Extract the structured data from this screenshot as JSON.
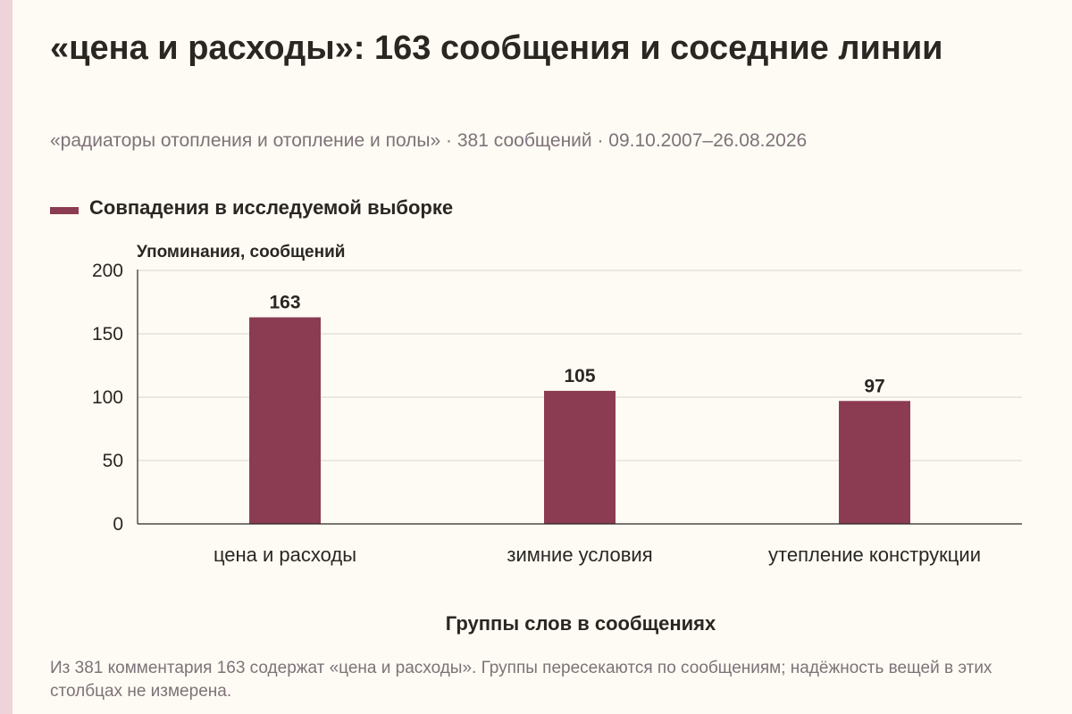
{
  "header": {
    "title": "«цена и расходы»: 163 сообщения и соседние линии",
    "subtitle": "«радиаторы отопления и отопление и полы» · 381 сообщений · 09.10.2007–26.08.2026"
  },
  "footnote": "Из 381 комментария 163 содержат «цена и расходы». Группы пересекаются по сообщениям; надёжность вещей в этих столбцах не измерена.",
  "colors": {
    "bar": "#8b3c52",
    "grid": "#d9d4cc",
    "axis": "#2a2622",
    "side_strip": "#efd3da"
  },
  "chart_data": {
    "type": "bar",
    "title": "«цена и расходы»: 163 сообщения и соседние линии",
    "subtitle": "«радиаторы отопления и отопление и полы» · 381 сообщений · 09.10.2007–26.08.2026",
    "categories": [
      "цена и расходы",
      "зимние условия",
      "утепление конструкции"
    ],
    "series": [
      {
        "name": "Совпадения в исследуемой выборке",
        "values": [
          163,
          105,
          97
        ]
      }
    ],
    "xlabel": "Группы слов в сообщениях",
    "ylabel": "Упоминания, сообщений",
    "ylim": [
      0,
      200
    ],
    "yticks": [
      0,
      50,
      100,
      150,
      200
    ],
    "grid": true,
    "legend_position": "top-left",
    "data_labels": true
  }
}
